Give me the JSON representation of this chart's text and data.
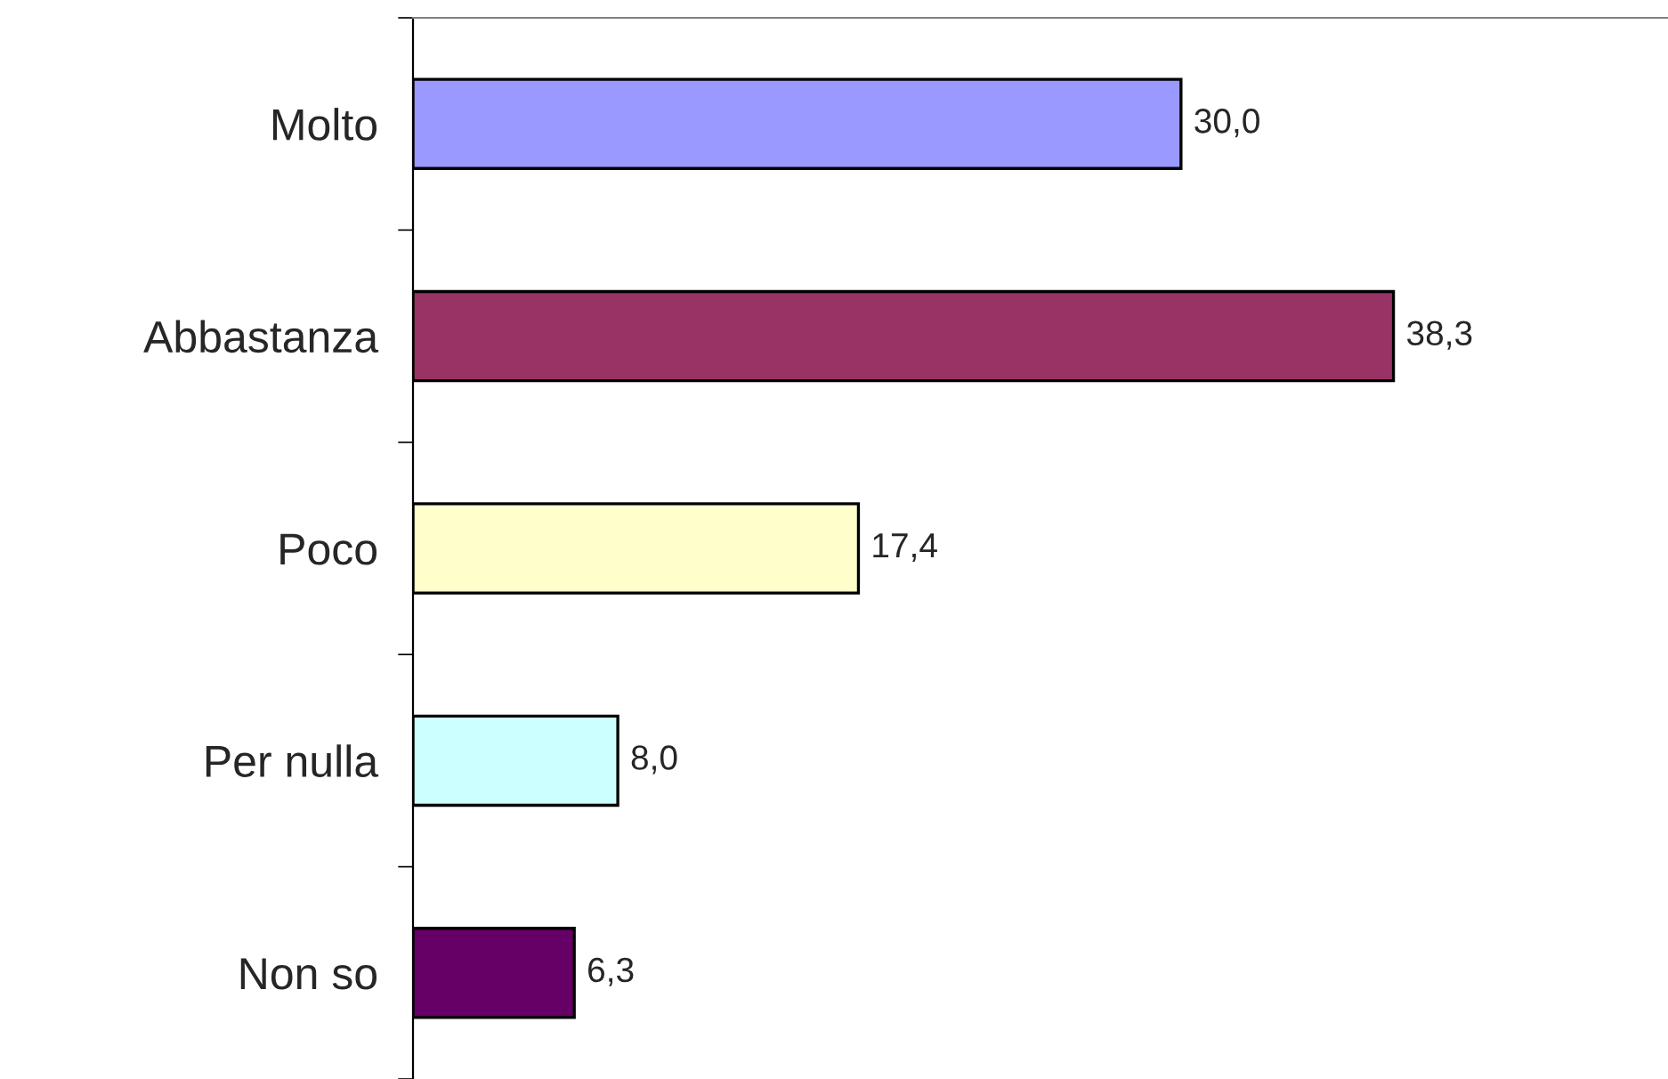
{
  "chart_data": {
    "type": "bar",
    "orientation": "horizontal",
    "categories": [
      "Molto",
      "Abbastanza",
      "Poco",
      "Per nulla",
      "Non so"
    ],
    "values": [
      30.0,
      38.3,
      17.4,
      8.0,
      6.3
    ],
    "colors": [
      "#9999ff",
      "#993366",
      "#ffffcc",
      "#ccffff",
      "#660066"
    ],
    "value_labels": [
      "30,0",
      "38,3",
      "17,4",
      "8,0",
      "6,3"
    ],
    "grid": false,
    "legend": false
  }
}
